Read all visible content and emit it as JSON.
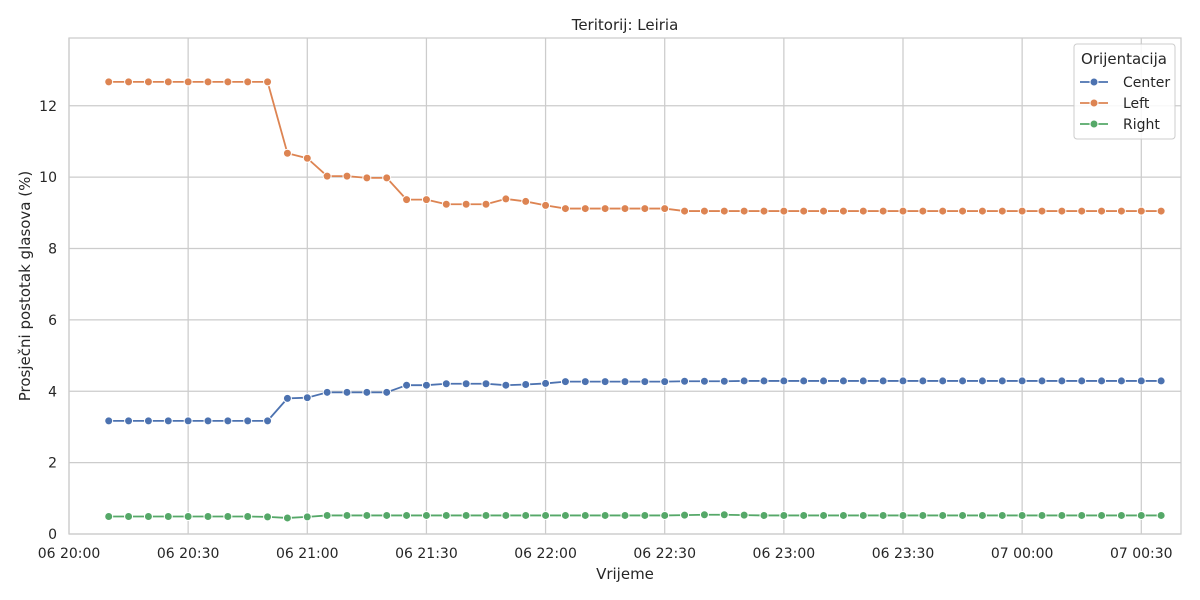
{
  "chart_data": {
    "type": "line",
    "title": "Teritorij: Leiria",
    "xlabel": "Vrijeme",
    "ylabel": "Prosječni postotak glasova (%)",
    "x_unit": "time",
    "xlim": [
      "06 20:00",
      "07 00:40"
    ],
    "ylim": [
      0,
      13.9
    ],
    "x_ticks": [
      "06 20:00",
      "06 20:30",
      "06 21:00",
      "06 21:30",
      "06 22:00",
      "06 22:30",
      "06 23:00",
      "06 23:30",
      "07 00:00",
      "07 00:30"
    ],
    "y_ticks": [
      0,
      2,
      4,
      6,
      8,
      10,
      12
    ],
    "grid": true,
    "legend": {
      "title": "Orijentacija",
      "position": "top-right"
    },
    "x": [
      "06 20:10",
      "06 20:15",
      "06 20:20",
      "06 20:25",
      "06 20:30",
      "06 20:35",
      "06 20:40",
      "06 20:45",
      "06 20:50",
      "06 20:55",
      "06 21:00",
      "06 21:05",
      "06 21:10",
      "06 21:15",
      "06 21:20",
      "06 21:25",
      "06 21:30",
      "06 21:35",
      "06 21:40",
      "06 21:45",
      "06 21:50",
      "06 21:55",
      "06 22:00",
      "06 22:05",
      "06 22:10",
      "06 22:15",
      "06 22:20",
      "06 22:25",
      "06 22:30",
      "06 22:35",
      "06 22:40",
      "06 22:45",
      "06 22:50",
      "06 22:55",
      "06 23:00",
      "06 23:05",
      "06 23:10",
      "06 23:15",
      "06 23:20",
      "06 23:25",
      "06 23:30",
      "06 23:35",
      "06 23:40",
      "06 23:45",
      "06 23:50",
      "06 23:55",
      "07 00:00",
      "07 00:05",
      "07 00:10",
      "07 00:15",
      "07 00:20",
      "07 00:25",
      "07 00:30",
      "07 00:35"
    ],
    "series": [
      {
        "name": "Center",
        "color": "#4c72b0",
        "values": [
          3.17,
          3.17,
          3.17,
          3.17,
          3.17,
          3.17,
          3.17,
          3.17,
          3.17,
          3.8,
          3.82,
          3.97,
          3.97,
          3.97,
          3.97,
          4.17,
          4.17,
          4.21,
          4.21,
          4.21,
          4.17,
          4.19,
          4.22,
          4.27,
          4.27,
          4.27,
          4.27,
          4.27,
          4.27,
          4.28,
          4.28,
          4.28,
          4.29,
          4.29,
          4.29,
          4.29,
          4.29,
          4.29,
          4.29,
          4.29,
          4.29,
          4.29,
          4.29,
          4.29,
          4.29,
          4.29,
          4.29,
          4.29,
          4.29,
          4.29,
          4.29,
          4.29,
          4.29,
          4.29
        ]
      },
      {
        "name": "Left",
        "color": "#dd8452",
        "values": [
          12.67,
          12.67,
          12.67,
          12.67,
          12.67,
          12.67,
          12.67,
          12.67,
          12.67,
          10.67,
          10.53,
          10.03,
          10.03,
          9.98,
          9.98,
          9.37,
          9.37,
          9.24,
          9.24,
          9.24,
          9.39,
          9.32,
          9.21,
          9.12,
          9.12,
          9.12,
          9.12,
          9.12,
          9.12,
          9.05,
          9.05,
          9.05,
          9.05,
          9.05,
          9.05,
          9.05,
          9.05,
          9.05,
          9.05,
          9.05,
          9.05,
          9.05,
          9.05,
          9.05,
          9.05,
          9.05,
          9.05,
          9.05,
          9.05,
          9.05,
          9.05,
          9.05,
          9.05,
          9.05
        ]
      },
      {
        "name": "Right",
        "color": "#55a868",
        "values": [
          0.49,
          0.49,
          0.49,
          0.49,
          0.49,
          0.49,
          0.49,
          0.49,
          0.48,
          0.45,
          0.48,
          0.52,
          0.52,
          0.52,
          0.52,
          0.52,
          0.52,
          0.52,
          0.52,
          0.52,
          0.52,
          0.52,
          0.52,
          0.52,
          0.52,
          0.52,
          0.52,
          0.52,
          0.52,
          0.53,
          0.54,
          0.54,
          0.53,
          0.52,
          0.52,
          0.52,
          0.52,
          0.52,
          0.52,
          0.52,
          0.52,
          0.52,
          0.52,
          0.52,
          0.52,
          0.52,
          0.52,
          0.52,
          0.52,
          0.52,
          0.52,
          0.52,
          0.52,
          0.52
        ]
      }
    ]
  }
}
